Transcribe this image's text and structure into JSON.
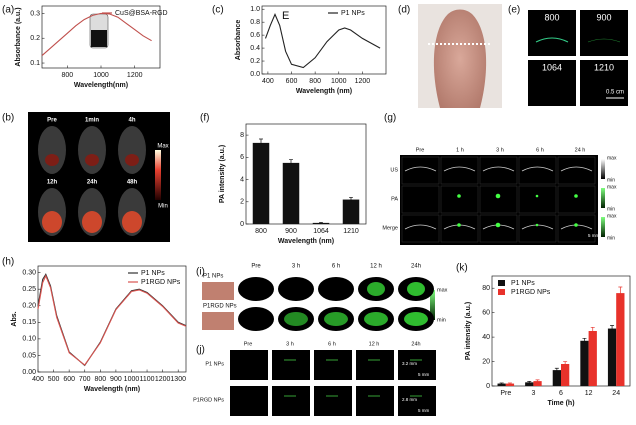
{
  "labels": [
    "(a)",
    "(b)",
    "(c)",
    "(d)",
    "(e)",
    "(f)",
    "(g)",
    "(h)",
    "(i)",
    "(j)",
    "(k)"
  ],
  "chart_data": [
    {
      "type": "line",
      "x": [
        650,
        700,
        750,
        800,
        850,
        900,
        950,
        1000,
        1050,
        1100,
        1150,
        1200,
        1250,
        1300
      ],
      "series": [
        {
          "name": "CuS@BSA-RGD",
          "color": "#c0504d",
          "values": [
            0.13,
            0.16,
            0.19,
            0.22,
            0.25,
            0.275,
            0.292,
            0.3,
            0.298,
            0.285,
            0.26,
            0.235,
            0.21,
            0.19
          ]
        }
      ],
      "xlim": [
        650,
        1350
      ],
      "xticks": [
        800,
        1000,
        1200
      ],
      "ylim": [
        0.08,
        0.33
      ],
      "yticks": [
        0.1,
        0.2,
        0.3
      ],
      "xlabel": "Wavelength(nm)",
      "ylabel": "Absorbance (a.u.)",
      "legend": "upper right"
    },
    {
      "type": "line",
      "x": [
        380,
        420,
        460,
        500,
        550,
        600,
        700,
        800,
        900,
        1000,
        1050,
        1100,
        1200,
        1300,
        1350
      ],
      "series": [
        {
          "name": "P1 NPs",
          "color": "#222222",
          "values": [
            0.55,
            0.75,
            0.92,
            0.75,
            0.35,
            0.15,
            0.1,
            0.25,
            0.5,
            0.68,
            0.71,
            0.68,
            0.55,
            0.45,
            0.4
          ]
        }
      ],
      "xlim": [
        350,
        1400
      ],
      "xticks": [
        400,
        600,
        800,
        1000,
        1200
      ],
      "ylim": [
        0,
        1.05
      ],
      "yticks": [
        {
          "value": 0,
          "label": "0.0"
        },
        0.2,
        0.4,
        0.6,
        0.8,
        {
          "value": 1,
          "label": "1.0"
        }
      ],
      "xlabel": "Wavelength (nm)",
      "ylabel": "Absorbance",
      "annotation": "E",
      "legend": "upper right"
    },
    {
      "type": "bar",
      "categories": [
        "800",
        "900",
        "1064",
        "1210"
      ],
      "values": [
        7.3,
        5.5,
        0.1,
        2.2
      ],
      "errors": [
        0.35,
        0.3,
        0.05,
        0.2
      ],
      "color": "#111111",
      "ylim": [
        0,
        9
      ],
      "yticks": [
        0,
        2,
        4,
        6,
        8
      ],
      "xlabel": "Wavelength (nm)",
      "ylabel": "PA intensity (a.u.)"
    },
    {
      "type": "line",
      "x": [
        400,
        430,
        450,
        480,
        520,
        600,
        700,
        800,
        900,
        1000,
        1050,
        1100,
        1200,
        1300,
        1350
      ],
      "series": [
        {
          "name": "P1 NPs",
          "color": "#333333",
          "values": [
            0.2,
            0.28,
            0.295,
            0.26,
            0.17,
            0.06,
            0.02,
            0.09,
            0.19,
            0.245,
            0.25,
            0.24,
            0.2,
            0.15,
            0.14
          ]
        },
        {
          "name": "P1RGD NPs",
          "color": "#d9534f",
          "values": [
            0.19,
            0.27,
            0.29,
            0.255,
            0.165,
            0.058,
            0.021,
            0.088,
            0.188,
            0.243,
            0.248,
            0.238,
            0.198,
            0.148,
            0.138
          ]
        }
      ],
      "xlim": [
        400,
        1350
      ],
      "xticks": [
        400,
        500,
        600,
        700,
        800,
        900,
        1000,
        1100,
        1200,
        1300
      ],
      "ylim": [
        0,
        0.32
      ],
      "yticks": [
        {
          "value": 0,
          "label": "0.00"
        },
        0.05,
        {
          "value": 0.1,
          "label": "0.10"
        },
        0.15,
        {
          "value": 0.2,
          "label": "0.20"
        },
        0.25,
        {
          "value": 0.3,
          "label": "0.30"
        }
      ],
      "xlabel": "Wavelength (nm)",
      "ylabel": "Abs.",
      "legend": "upper right"
    },
    {
      "type": "bar",
      "categories": [
        "Pre",
        "3",
        "6",
        "12",
        "24"
      ],
      "series": [
        {
          "name": "P1 NPs",
          "color": "#111111",
          "values": [
            2,
            3,
            13,
            37,
            47
          ],
          "errors": [
            0.5,
            0.8,
            1.5,
            2,
            2.5
          ]
        },
        {
          "name": "P1RGD NPs",
          "color": "#e8322b",
          "values": [
            2,
            4,
            18,
            45,
            76
          ],
          "errors": [
            0.5,
            1,
            2,
            3,
            5
          ]
        }
      ],
      "ylim": [
        0,
        90
      ],
      "yticks": [
        0,
        20,
        40,
        60,
        80
      ],
      "xlabel": "Time (h)",
      "ylabel": "PA intensity (a.u.)",
      "legend": "upper left"
    }
  ],
  "b": {
    "times": [
      "Pre",
      "1min",
      "4h",
      "12h",
      "24h",
      "48h"
    ],
    "scale": [
      "Max",
      "Min"
    ]
  },
  "e": {
    "wavelengths": [
      "800",
      "900",
      "1064",
      "1210"
    ],
    "scalebar": "0.5 cm"
  },
  "g": {
    "times": [
      "Pre",
      "1 h",
      "3 h",
      "6 h",
      "24 h"
    ],
    "rows": [
      "US",
      "PA",
      "Merge"
    ],
    "scale": [
      "max",
      "min"
    ],
    "scalebar": "5 mm"
  },
  "i": {
    "groups": [
      "P1 NPs",
      "P1RGD  NPs"
    ],
    "times": [
      "Pre",
      "3 h",
      "6 h",
      "12 h",
      "24h"
    ],
    "scale": [
      "max",
      "min"
    ]
  },
  "j": {
    "times": [
      "Pre",
      "3 h",
      "6 h",
      "12 h",
      "24h"
    ],
    "groups": [
      "P1 NPs",
      "P1RGD NPs"
    ],
    "depths": [
      "3.2 mm",
      "2.8 mm"
    ],
    "scalebar": "5 mm"
  }
}
